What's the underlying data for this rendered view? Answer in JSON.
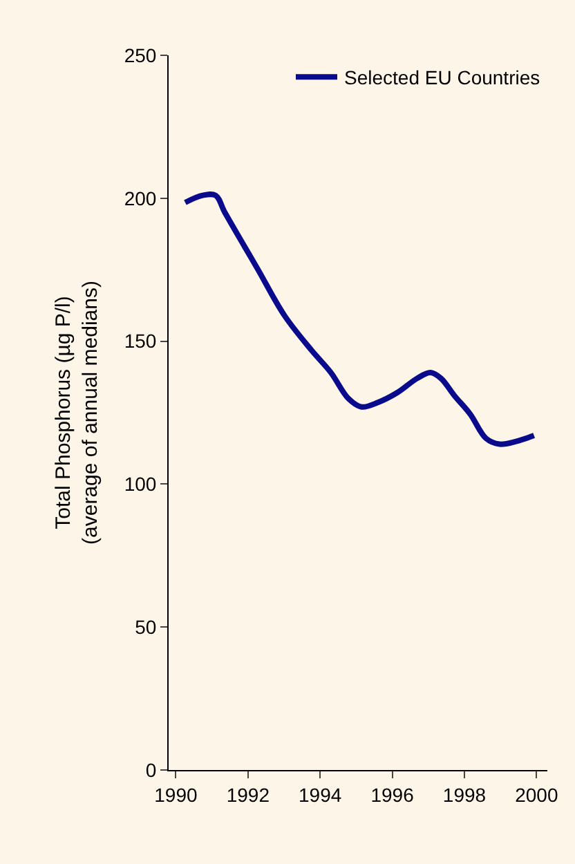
{
  "chart_data": {
    "type": "line",
    "ylabel": "Total Phosphorus (µg P/l)\n(average of annual medians)",
    "xlim": [
      1989.8,
      2000.3
    ],
    "xticks": [
      1990,
      1992,
      1994,
      1996,
      1998,
      2000
    ],
    "ylim": [
      0,
      250
    ],
    "yticks": [
      0,
      50,
      100,
      150,
      200,
      250
    ],
    "grid": false,
    "legend": "top right",
    "marker": "none",
    "line_style": "solid",
    "series": [
      {
        "name": "Selected EU Countries",
        "color": "#0a0a8c",
        "x": [
          1990.26,
          1990.74,
          1991.1,
          1991.36,
          1991.91,
          1992.28,
          1993.01,
          1993.75,
          1994.3,
          1994.78,
          1995.15,
          1995.59,
          1996.14,
          1996.69,
          1997.06,
          1997.35,
          1997.72,
          1998.16,
          1998.6,
          1998.97,
          1999.45,
          1999.93
        ],
        "values": [
          198.5,
          201,
          201,
          195,
          183,
          175,
          159,
          147,
          139,
          130,
          127,
          128.5,
          132,
          137,
          139,
          137,
          131,
          124.5,
          116,
          114,
          115,
          117
        ]
      }
    ]
  }
}
